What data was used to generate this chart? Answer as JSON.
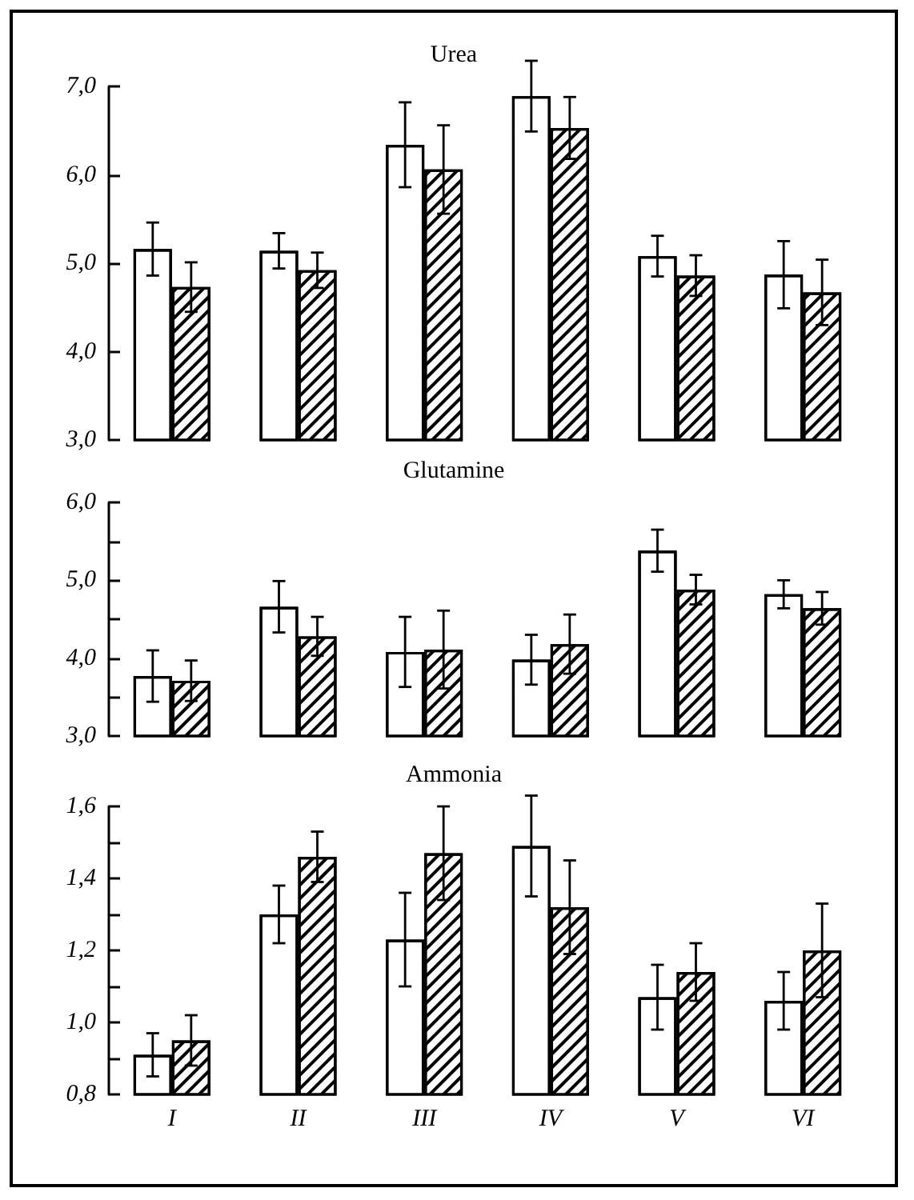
{
  "chart_data": [
    {
      "type": "bar",
      "title": "Urea",
      "categories": [
        null,
        null,
        null,
        null,
        null,
        null
      ],
      "series": [
        {
          "color": "#ffffff",
          "values": [
            5.16,
            5.14,
            6.34,
            6.89,
            5.08,
            4.87
          ],
          "errors": [
            0.3,
            0.2,
            0.48,
            0.4,
            0.23,
            0.38
          ]
        },
        {
          "color": "#000000",
          "values": [
            4.73,
            4.92,
            6.06,
            6.53,
            4.86,
            4.67
          ],
          "errors": [
            0.28,
            0.2,
            0.5,
            0.35,
            0.23,
            0.37
          ]
        }
      ],
      "ylim": [
        3,
        7
      ],
      "yticks": [
        {
          "value": 3,
          "label": "3,0"
        },
        {
          "value": 4,
          "label": "4,0"
        },
        {
          "value": 5,
          "label": "5,0"
        },
        {
          "value": 6,
          "label": "6,0"
        },
        {
          "value": 7,
          "label": "7,0"
        }
      ],
      "tick_labels": "y",
      "grid": false
    },
    {
      "type": "bar",
      "title": "Glutamine",
      "categories": [
        null,
        null,
        null,
        null,
        null,
        null
      ],
      "series": [
        {
          "color": "#ffffff",
          "values": [
            3.77,
            4.66,
            4.08,
            3.98,
            5.38,
            4.82
          ],
          "errors": [
            0.33,
            0.33,
            0.45,
            0.32,
            0.27,
            0.18
          ]
        },
        {
          "color": "#000000",
          "values": [
            3.71,
            4.28,
            4.11,
            4.18,
            4.88,
            4.64
          ],
          "errors": [
            0.26,
            0.25,
            0.5,
            0.38,
            0.19,
            0.21
          ]
        }
      ],
      "ylim": [
        3,
        6
      ],
      "yticks": [
        {
          "value": 3,
          "label": "3,0"
        },
        {
          "value": 3.5,
          "label": null
        },
        {
          "value": 4,
          "label": "4,0"
        },
        {
          "value": 4.5,
          "label": null
        },
        {
          "value": 5,
          "label": "5,0"
        },
        {
          "value": 5.5,
          "label": null
        },
        {
          "value": 6,
          "label": "6,0"
        }
      ],
      "tick_labels": "y",
      "grid": false
    },
    {
      "type": "bar",
      "title": "Ammonia",
      "categories": [
        "I",
        "II",
        "III",
        "IV",
        "V",
        "VI"
      ],
      "series": [
        {
          "color": "#ffffff",
          "values": [
            0.91,
            1.3,
            1.23,
            1.49,
            1.07,
            1.06
          ],
          "errors": [
            0.06,
            0.08,
            0.13,
            0.14,
            0.09,
            0.08
          ]
        },
        {
          "color": "#000000",
          "values": [
            0.95,
            1.46,
            1.47,
            1.32,
            1.14,
            1.2
          ],
          "errors": [
            0.07,
            0.07,
            0.13,
            0.13,
            0.08,
            0.13
          ]
        }
      ],
      "ylim": [
        0.8,
        1.6
      ],
      "yticks": [
        {
          "value": 0.8,
          "label": "0,8"
        },
        {
          "value": 0.9,
          "label": null
        },
        {
          "value": 1.0,
          "label": "1,0"
        },
        {
          "value": 1.1,
          "label": null
        },
        {
          "value": 1.2,
          "label": "1,2"
        },
        {
          "value": 1.3,
          "label": null
        },
        {
          "value": 1.4,
          "label": "1,4"
        },
        {
          "value": 1.5,
          "label": null
        },
        {
          "value": 1.6,
          "label": "1,6"
        }
      ],
      "grid": false
    }
  ]
}
